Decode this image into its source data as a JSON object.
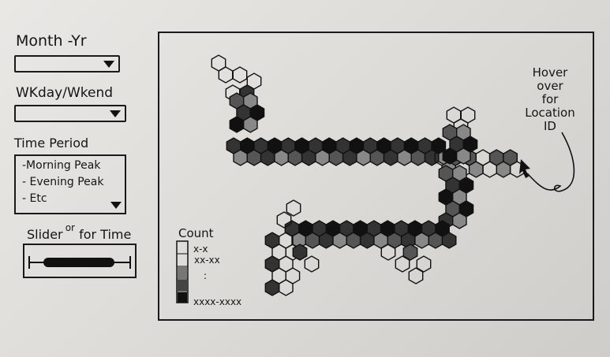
{
  "filters": {
    "month_year": {
      "label": "Month -Yr",
      "value": ""
    },
    "weekday_weekend": {
      "label": "WKday/Wkend",
      "value": ""
    },
    "time_period": {
      "label": "Time Period",
      "options": [
        "-Morning Peak",
        "- Evening Peak",
        "- Etc"
      ]
    }
  },
  "slider": {
    "label": "Slider",
    "label_note": "or",
    "label_rest": "for Time",
    "fill_fraction": 0.82
  },
  "legend": {
    "title": "Count",
    "ranges": [
      "x-x",
      "xx-xx",
      ":",
      "xxxx-xxxx"
    ],
    "levels": 5
  },
  "annotation": {
    "lines": [
      "Hover",
      "over",
      "for",
      "Location",
      "ID"
    ]
  },
  "colors": {
    "ink": "#151515",
    "paper": "#e2e0dc"
  }
}
